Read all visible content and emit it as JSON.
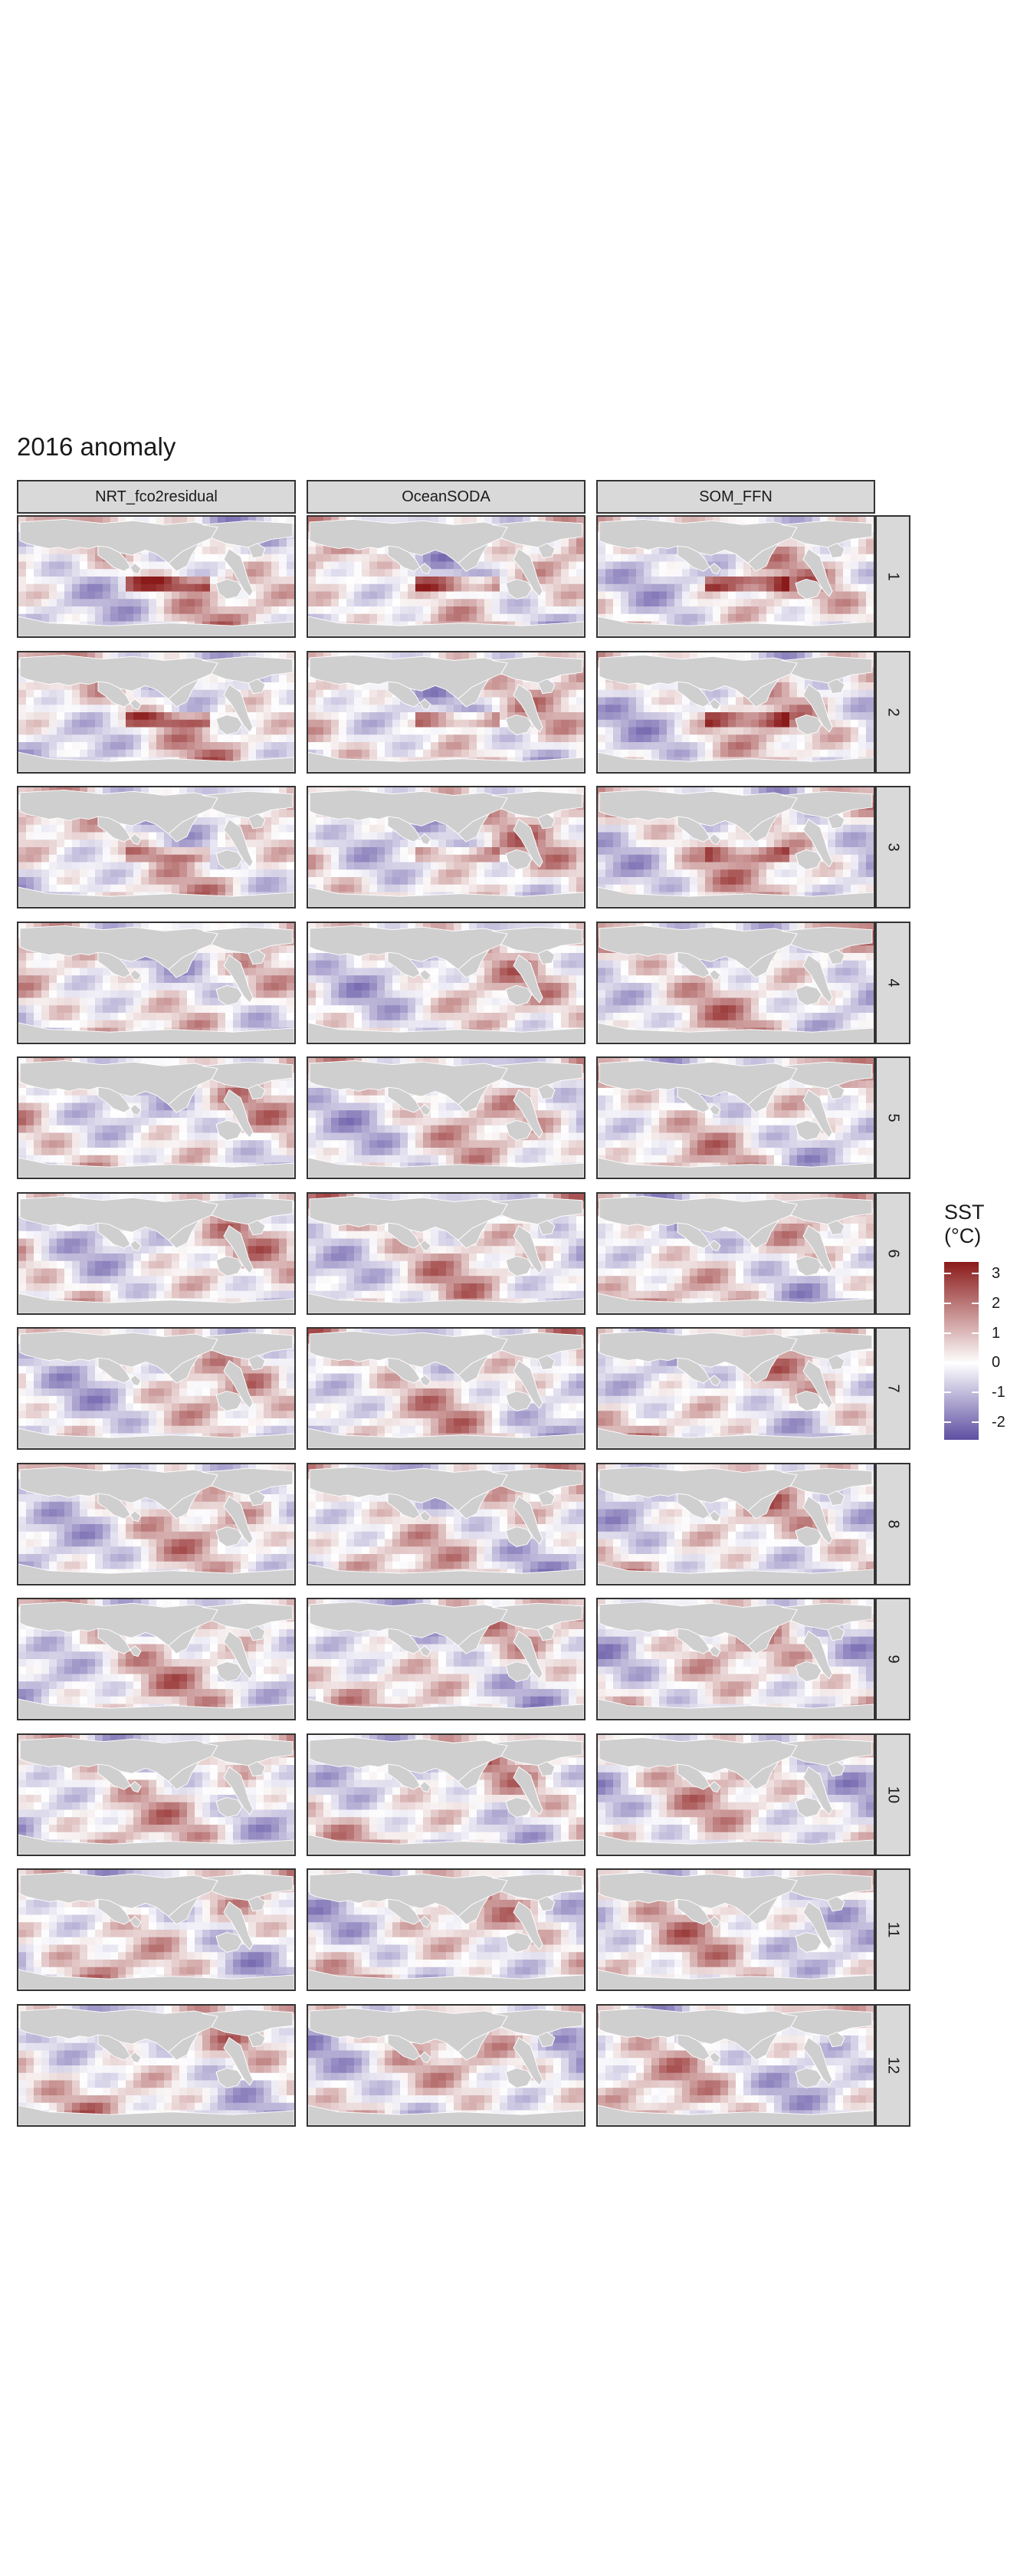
{
  "title": "2016 anomaly",
  "chart_data": {
    "type": "heatmap",
    "title": "2016 anomaly",
    "facet_columns": [
      "NRT_fco2residual",
      "OceanSODA",
      "SOM_FFN"
    ],
    "facet_rows": [
      "1",
      "2",
      "3",
      "4",
      "5",
      "6",
      "7",
      "8",
      "9",
      "10",
      "11",
      "12"
    ],
    "map": "global ocean, land shaded grey",
    "legend": {
      "title_lines": [
        "SST",
        "(°C)"
      ],
      "ticks": [
        3,
        2,
        1,
        0,
        -1,
        -2
      ],
      "colors": [
        "#5e4fa2",
        "#ffffff",
        "#8b1a1a"
      ],
      "placement": "right"
    }
  }
}
